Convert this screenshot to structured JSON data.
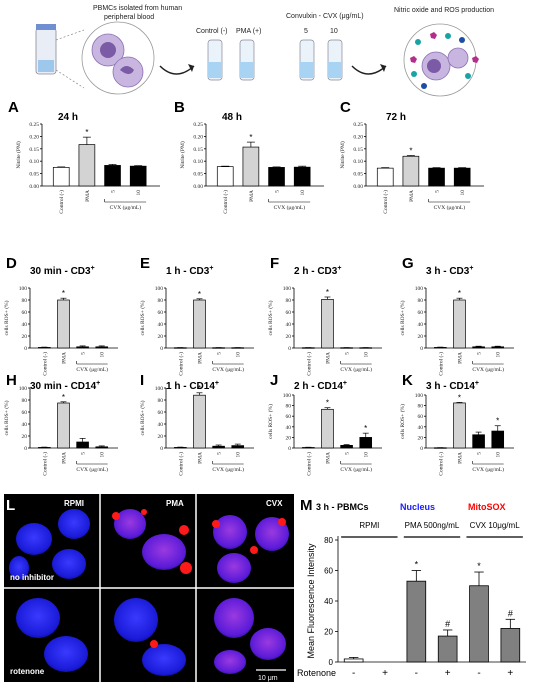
{
  "schema": {
    "pbmc_label": [
      "PBMCs isolated from human",
      "peripheral blood"
    ],
    "control_label": "Control (-)",
    "pma_label": "PMA (+)",
    "cvx_label": "Convulxin - CVX (μg/mL)",
    "cvx_doses": [
      "5",
      "10"
    ],
    "result_label": "Nitric oxide and ROS production"
  },
  "colors": {
    "control": "#ffffff",
    "pma": "#d3d3d3",
    "cvx": "#000000",
    "gray_bar": "#808080",
    "nucleus": "#1a1aff",
    "mitosox": "#ff0000"
  },
  "chart_data": [
    {
      "panel": "A",
      "type": "bar",
      "title": "24 h",
      "ylabel": "Nitrite (PM)",
      "ylim": [
        0,
        0.25
      ],
      "yticks": [
        "0.00",
        "0.05",
        "0.10",
        "0.15",
        "0.20",
        "0.25"
      ],
      "categories": [
        "Control (-)",
        "PMA",
        "5",
        "10"
      ],
      "group_label": "CVX (μg/mL)",
      "values": [
        0.075,
        0.167,
        0.083,
        0.08
      ],
      "errors": [
        0.002,
        0.03,
        0.004,
        0.002
      ],
      "significance": [
        "",
        "*",
        "",
        ""
      ]
    },
    {
      "panel": "B",
      "type": "bar",
      "title": "48 h",
      "ylabel": "Nitrite (PM)",
      "ylim": [
        0,
        0.25
      ],
      "yticks": [
        "0.00",
        "0.05",
        "0.10",
        "0.15",
        "0.20",
        "0.25"
      ],
      "categories": [
        "Control (-)",
        "PMA",
        "5",
        "10"
      ],
      "group_label": "CVX (μg/mL)",
      "values": [
        0.078,
        0.157,
        0.075,
        0.076
      ],
      "errors": [
        0.002,
        0.02,
        0.002,
        0.004
      ],
      "significance": [
        "",
        "*",
        "",
        ""
      ]
    },
    {
      "panel": "C",
      "type": "bar",
      "title": "72 h",
      "ylabel": "Nitrite (PM)",
      "ylim": [
        0,
        0.25
      ],
      "yticks": [
        "0.00",
        "0.05",
        "0.10",
        "0.15",
        "0.20",
        "0.25"
      ],
      "categories": [
        "Control (-)",
        "PMA",
        "5",
        "10"
      ],
      "group_label": "CVX (μg/mL)",
      "values": [
        0.072,
        0.12,
        0.072,
        0.072
      ],
      "errors": [
        0.002,
        0.003,
        0.002,
        0.002
      ],
      "significance": [
        "",
        "*",
        "",
        ""
      ]
    },
    {
      "panel": "D",
      "type": "bar",
      "title": "30 min - CD3",
      "title_sup": "+",
      "ylabel": "cells ROS+ (%)",
      "ylim": [
        0,
        100
      ],
      "yticks": [
        "0",
        "20",
        "40",
        "60",
        "80",
        "100"
      ],
      "categories": [
        "Control (-)",
        "PMA",
        "5",
        "10"
      ],
      "group_label": "CVX (μg/mL)",
      "values": [
        1,
        80,
        2,
        2
      ],
      "errors": [
        0.5,
        3,
        1.5,
        1.5
      ],
      "significance": [
        "",
        "*",
        "",
        ""
      ]
    },
    {
      "panel": "E",
      "type": "bar",
      "title": "1 h - CD3",
      "title_sup": "+",
      "ylabel": "cells ROS+ (%)",
      "ylim": [
        0,
        100
      ],
      "yticks": [
        "0",
        "20",
        "40",
        "60",
        "80",
        "100"
      ],
      "categories": [
        "Control (-)",
        "PMA",
        "5",
        "10"
      ],
      "group_label": "CVX (μg/mL)",
      "values": [
        0.5,
        80,
        0.5,
        0.5
      ],
      "errors": [
        0.2,
        2,
        0.2,
        0.2
      ],
      "significance": [
        "",
        "*",
        "",
        ""
      ]
    },
    {
      "panel": "F",
      "type": "bar",
      "title": "2 h -  CD3",
      "title_sup": "+",
      "ylabel": "cells ROS+ (%)",
      "ylim": [
        0,
        100
      ],
      "yticks": [
        "0",
        "20",
        "40",
        "60",
        "80",
        "100"
      ],
      "categories": [
        "Control (-)",
        "PMA",
        "5",
        "10"
      ],
      "group_label": "CVX (μg/mL)",
      "values": [
        0.5,
        81,
        0.5,
        0.5
      ],
      "errors": [
        0.2,
        4,
        0.2,
        0.2
      ],
      "significance": [
        "",
        "*",
        "",
        ""
      ]
    },
    {
      "panel": "G",
      "type": "bar",
      "title": "3 h -  CD3",
      "title_sup": "+",
      "ylabel": "cells ROS+ (%)",
      "ylim": [
        0,
        100
      ],
      "yticks": [
        "0",
        "20",
        "40",
        "60",
        "80",
        "100"
      ],
      "categories": [
        "Control (-)",
        "PMA",
        "5",
        "10"
      ],
      "group_label": "CVX (μg/mL)",
      "values": [
        1,
        80,
        2,
        2
      ],
      "errors": [
        0.5,
        3,
        1,
        1
      ],
      "significance": [
        "",
        "*",
        "",
        ""
      ]
    },
    {
      "panel": "H",
      "type": "bar",
      "title": "30 min -  CD14",
      "title_sup": "+",
      "ylabel": "cells ROS+ (%)",
      "ylim": [
        0,
        100
      ],
      "yticks": [
        "0",
        "20",
        "40",
        "60",
        "80",
        "100"
      ],
      "categories": [
        "Control (-)",
        "PMA",
        "5",
        "10"
      ],
      "group_label": "CVX (μg/mL)",
      "values": [
        1,
        75,
        10,
        2
      ],
      "errors": [
        0.5,
        2,
        6,
        1.5
      ],
      "significance": [
        "",
        "*",
        "",
        ""
      ]
    },
    {
      "panel": "I",
      "type": "bar",
      "title": "1 h - CD14",
      "title_sup": "+",
      "ylabel": "cells ROS+ (%)",
      "ylim": [
        0,
        100
      ],
      "yticks": [
        "0",
        "20",
        "40",
        "60",
        "80",
        "100"
      ],
      "categories": [
        "Control (-)",
        "PMA",
        "5",
        "10"
      ],
      "group_label": "CVX (μg/mL)",
      "values": [
        1,
        88,
        3,
        4
      ],
      "errors": [
        0.5,
        4,
        2,
        2.5
      ],
      "significance": [
        "",
        "*",
        "",
        ""
      ]
    },
    {
      "panel": "J",
      "type": "bar",
      "title": "2 h - CD14",
      "title_sup": "+",
      "ylabel": "cells ROS+ (%)",
      "ylim": [
        0,
        100
      ],
      "yticks": [
        "0",
        "20",
        "40",
        "60",
        "80",
        "100"
      ],
      "categories": [
        "Control (-)",
        "PMA",
        "5",
        "10"
      ],
      "group_label": "CVX (μg/mL)",
      "values": [
        1,
        73,
        5,
        20
      ],
      "errors": [
        0.5,
        3,
        1.5,
        8
      ],
      "significance": [
        "",
        "*",
        "",
        "*"
      ]
    },
    {
      "panel": "K",
      "type": "bar",
      "title": "3 h - CD14",
      "title_sup": "+",
      "ylabel": "cells ROS+ (%)",
      "ylim": [
        0,
        100
      ],
      "yticks": [
        "0",
        "20",
        "40",
        "60",
        "80",
        "100"
      ],
      "categories": [
        "Control (-)",
        "PMA",
        "5",
        "10"
      ],
      "group_label": "CVX (μg/mL)",
      "values": [
        0.5,
        85,
        25,
        32
      ],
      "errors": [
        0.2,
        1,
        5,
        10
      ],
      "significance": [
        "",
        "*",
        "",
        "*"
      ]
    },
    {
      "panel": "M",
      "type": "bar",
      "title": "3 h - PBMCs",
      "ylabel": "Mean Fluorescence Intensity",
      "ylim": [
        0,
        80
      ],
      "yticks": [
        "0",
        "20",
        "40",
        "60",
        "80"
      ],
      "groups": [
        "RPMI",
        "PMA 500ng/mL",
        "CVX 10μg/mL"
      ],
      "x_axis_title": "Rotenone",
      "categories": [
        "-",
        "+",
        "-",
        "+",
        "-",
        "+"
      ],
      "values": [
        2,
        0,
        53,
        17,
        50,
        22
      ],
      "errors": [
        1,
        0,
        7,
        4,
        9,
        6
      ],
      "significance": [
        "",
        "",
        "*",
        "#",
        "*",
        "#"
      ],
      "legend": [
        "Nucleus",
        "MitoSOX"
      ]
    }
  ],
  "microscopy": {
    "panel": "L",
    "columns": [
      "RPMI",
      "PMA",
      "CVX"
    ],
    "rows": [
      "no inhibitor",
      "rotenone"
    ],
    "scale_bar": "10 μm"
  }
}
